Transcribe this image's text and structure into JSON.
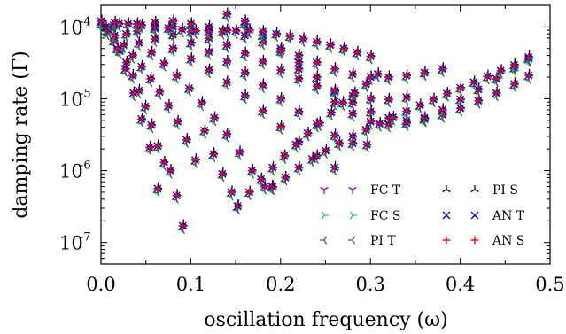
{
  "chart_data": {
    "type": "scatter",
    "xlabel": "oscillation frequency (ω)",
    "ylabel": "damping rate (Γ)",
    "xlim": [
      0.0,
      0.5
    ],
    "ylim": [
      5e-08,
      0.0002
    ],
    "yscale": "log",
    "x_ticks": [
      "0.0",
      "0.1",
      "0.2",
      "0.3",
      "0.4",
      "0.5"
    ],
    "y_ticks": [
      "10",
      "10",
      "10",
      "10"
    ],
    "y_tick_exponents": [
      "-4",
      "-5",
      "-6",
      "-7"
    ],
    "grid": false,
    "legend_position": "lower-right",
    "legend": {
      "fc_t": "FC T",
      "fc_s": "FC S",
      "pi_t": "PI T",
      "pi_s": "PI S",
      "an_t": "AN T",
      "an_s": "AN S"
    },
    "series": [
      {
        "name": "FC T",
        "color": "#b000c0",
        "marker": "tri-down"
      },
      {
        "name": "FC S",
        "color": "#20c0c0",
        "marker": "tri-right"
      },
      {
        "name": "PI T",
        "color": "#208020",
        "marker": "tri-left"
      },
      {
        "name": "PI S",
        "color": "#000000",
        "marker": "tri-up"
      },
      {
        "name": "AN T",
        "color": "#0000ff",
        "marker": "x"
      },
      {
        "name": "AN S",
        "color": "#ff0000",
        "marker": "plus"
      }
    ],
    "branches": [
      {
        "x": [
          0.0,
          0.007,
          0.014,
          0.021,
          0.028,
          0.035,
          0.042,
          0.049,
          0.056,
          0.063,
          0.07,
          0.077,
          0.084,
          0.091
        ],
        "y": [
          0.00011,
          8.5e-05,
          6.4e-05,
          4.6e-05,
          3.2e-05,
          2.1e-05,
          1.3e-05,
          7.8e-06,
          4.3e-06,
          2.2e-06,
          1.3e-06,
          1e-06,
          4.5e-07,
          1.7e-07
        ]
      },
      {
        "x": [
          0.009,
          0.018,
          0.027,
          0.036,
          0.045,
          0.054,
          0.063
        ],
        "y": [
          9e-05,
          5e-05,
          2.6e-05,
          1.2e-05,
          5.2e-06,
          2.1e-06,
          5.6e-07
        ]
      },
      {
        "x": [
          0.005,
          0.015,
          0.025,
          0.035,
          0.045,
          0.055,
          0.065,
          0.075,
          0.085,
          0.095,
          0.105,
          0.115,
          0.125,
          0.135,
          0.145,
          0.152
        ],
        "y": [
          0.0001,
          7.6e-05,
          5.6e-05,
          4e-05,
          2.8e-05,
          1.9e-05,
          1.25e-05,
          8e-06,
          4.8e-06,
          2.7e-06,
          1.4e-06,
          3.6e-06,
          1.7e-06,
          9e-07,
          5e-07,
          3.2e-07
        ]
      },
      {
        "x": [
          0.014,
          0.028,
          0.042,
          0.056,
          0.07,
          0.084,
          0.098,
          0.112,
          0.126,
          0.14,
          0.154,
          0.168,
          0.182,
          0.191
        ],
        "y": [
          0.000105,
          8e-05,
          6e-05,
          4.4e-05,
          3.1e-05,
          2.1e-05,
          1.4e-05,
          8.8e-06,
          5.4e-06,
          3.2e-06,
          1.8e-06,
          1e-06,
          6e-07,
          5.9e-07
        ]
      },
      {
        "x": [
          0.02,
          0.04,
          0.06,
          0.08,
          0.1,
          0.12,
          0.14,
          0.16,
          0.18,
          0.2,
          0.22,
          0.24,
          0.26
        ],
        "y": [
          0.00011,
          8.8e-05,
          6.8e-05,
          5e-05,
          3.6e-05,
          2.5e-05,
          1.7e-05,
          1.1e-05,
          6.8e-06,
          4.1e-06,
          2.5e-06,
          1.6e-06,
          1.1e-06
        ]
      },
      {
        "x": [
          0.04,
          0.06,
          0.08,
          0.1,
          0.12,
          0.14,
          0.16,
          0.18,
          0.2,
          0.22,
          0.24,
          0.26,
          0.28,
          0.296
        ],
        "y": [
          0.00011,
          9.5e-05,
          7.8e-05,
          6e-05,
          4.5e-05,
          3.3e-05,
          2.3e-05,
          1.55e-05,
          1e-05,
          6.6e-06,
          4.4e-06,
          3.1e-06,
          2.4e-06,
          2.3e-06
        ]
      },
      {
        "x": [
          0.06,
          0.08,
          0.1,
          0.12,
          0.14,
          0.16,
          0.18,
          0.2,
          0.22,
          0.24,
          0.26,
          0.28,
          0.3,
          0.32,
          0.34
        ],
        "y": [
          0.000115,
          0.0001,
          8.6e-05,
          7e-05,
          5.6e-05,
          4.3e-05,
          3.3e-05,
          2.5e-05,
          1.9e-05,
          1.5e-05,
          1.25e-05,
          1.1e-05,
          1e-05,
          9.8e-06,
          1.05e-05
        ]
      },
      {
        "x": [
          0.08,
          0.1,
          0.12,
          0.14,
          0.16,
          0.18,
          0.2,
          0.22,
          0.24,
          0.26,
          0.28,
          0.3,
          0.32,
          0.34,
          0.36,
          0.38
        ],
        "y": [
          0.00012,
          0.00011,
          0.0001,
          9e-05,
          7.6e-05,
          6.2e-05,
          5e-05,
          4e-05,
          3.2e-05,
          2.6e-05,
          2.2e-05,
          2e-05,
          2e-05,
          2.1e-05,
          2.3e-05,
          2.6e-05
        ]
      },
      {
        "x": [
          0.14,
          0.16,
          0.18,
          0.2,
          0.22,
          0.24,
          0.26,
          0.28,
          0.3,
          0.32,
          0.34,
          0.36,
          0.38,
          0.4,
          0.42,
          0.44,
          0.46,
          0.476
        ],
        "y": [
          0.00015,
          0.00011,
          7.6e-05,
          5e-05,
          3.2e-05,
          2e-05,
          1.3e-05,
          8.8e-06,
          6.6e-06,
          5.4e-06,
          5e-06,
          5.2e-06,
          6e-06,
          7.4e-06,
          9.4e-06,
          1.2e-05,
          1.6e-05,
          2.1e-05
        ]
      },
      {
        "x": [
          0.16,
          0.18,
          0.2,
          0.22,
          0.24,
          0.26,
          0.28,
          0.3,
          0.32,
          0.34,
          0.36,
          0.38,
          0.4,
          0.42,
          0.44,
          0.46,
          0.476
        ],
        "y": [
          0.00012,
          7.8e-05,
          4.6e-05,
          2.6e-05,
          1.5e-05,
          9e-06,
          6.2e-06,
          4.8e-06,
          4.4e-06,
          4.6e-06,
          5.4e-06,
          7e-06,
          9.8e-06,
          1.35e-05,
          1.9e-05,
          2.7e-05,
          3.6e-05
        ]
      },
      {
        "x": [
          0.19,
          0.205,
          0.22,
          0.235,
          0.25,
          0.265,
          0.28,
          0.295,
          0.31,
          0.325,
          0.34,
          0.355,
          0.37,
          0.385,
          0.4,
          0.415,
          0.43,
          0.445,
          0.46,
          0.476
        ],
        "y": [
          6e-07,
          8e-07,
          1.1e-06,
          1.45e-06,
          1.9e-06,
          2.4e-06,
          3e-06,
          3.7e-06,
          4.5e-06,
          5.5e-06,
          6.7e-06,
          8.1e-06,
          9.8e-06,
          1.18e-05,
          1.42e-05,
          1.7e-05,
          2.05e-05,
          2.45e-05,
          2.95e-05,
          3.8e-05
        ]
      },
      {
        "x": [
          0.152,
          0.165,
          0.178,
          0.191,
          0.204,
          0.217,
          0.23,
          0.243,
          0.256,
          0.269,
          0.282,
          0.295,
          0.308
        ],
        "y": [
          3.2e-07,
          5e-07,
          7.6e-07,
          1.1e-06,
          1.6e-06,
          2.3e-06,
          3.3e-06,
          4.6e-06,
          6.4e-06,
          8.8e-06,
          1.2e-05,
          1.6e-05,
          2.2e-05
        ]
      },
      {
        "x": [
          0.0,
          0.015,
          0.03,
          0.045,
          0.06,
          0.075,
          0.09,
          0.105,
          0.12,
          0.135,
          0.15,
          0.165,
          0.18,
          0.195,
          0.21,
          0.225,
          0.24,
          0.255,
          0.27,
          0.285,
          0.3
        ],
        "y": [
          0.00012,
          0.000115,
          0.00011,
          0.000105,
          0.0001,
          9.6e-05,
          9.2e-05,
          8.8e-05,
          8.6e-05,
          8.6e-05,
          8.8e-05,
          9e-05,
          8.6e-05,
          8e-05,
          7.4e-05,
          6.8e-05,
          6.2e-05,
          5.6e-05,
          5e-05,
          4.4e-05,
          3.9e-05
        ]
      }
    ]
  }
}
